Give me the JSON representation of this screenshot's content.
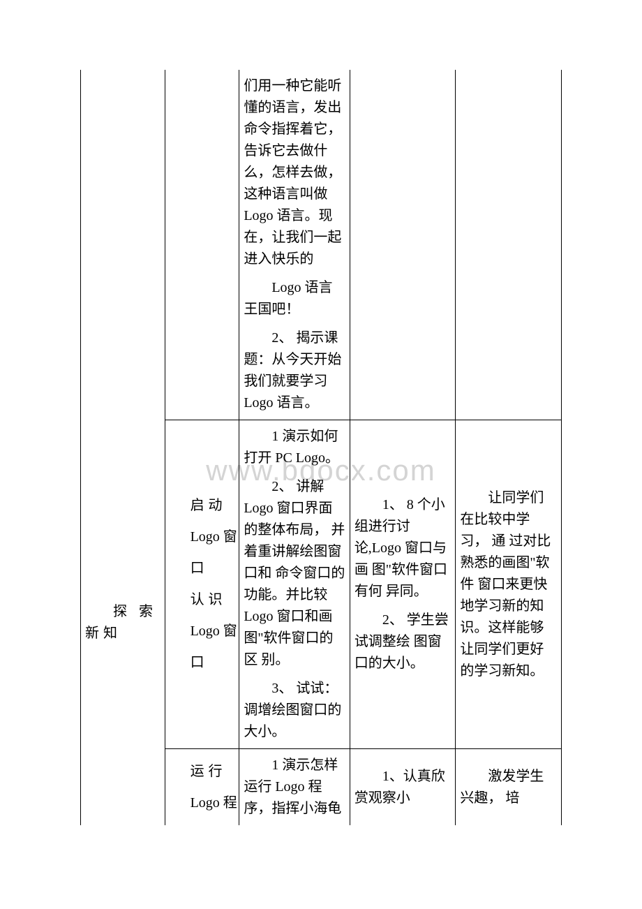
{
  "watermark": "www.bdocx.com",
  "row1": {
    "c3": {
      "p1": "们用一种它能听 懂的语言，发出命令指挥着它， 告诉它去做什么，怎样去做， 这种语言叫做 Logo 语言。现 在，让我们一起进入快乐的",
      "p2": "Logo 语言王国吧！",
      "p3": "2、 揭示课题：从今天开始我们就要学习 Logo 语言。"
    }
  },
  "row2": {
    "c1": "探 索 新知",
    "c2": {
      "l1": "启动",
      "l2": "Logo 窗",
      "l3": "口",
      "l4": "认识",
      "l5": "Logo 窗",
      "l6": "口"
    },
    "c3": {
      "p1": "1 演示如何打开 PC Logo。",
      "p2": "2、 讲解 Logo 窗口界面的整体布局， 并着重讲解绘图窗口和 命令窗口的功能。并比较 Logo 窗口和画图\"软件窗口的区 别。",
      "p3": "3、 试试：调增绘图窗口的大小。"
    },
    "c4": {
      "p1": "1、 8 个小组进行讨论,Logo 窗口与画 图\"软件窗口有何 异同。",
      "p2": "2、 学生尝试调整绘 图窗口的大小。"
    },
    "c5": "让同学们在比较中学习， 通 过对比熟悉的画图\"软件 窗口来更快地学习新的知识。这样能够让同学们更好 的学习新知。"
  },
  "row3": {
    "c2": {
      "l1": "运行",
      "l2": "Logo 程"
    },
    "c3": "1 演示怎样运行 Logo 程序，指挥小海龟",
    "c4": "1、认真欣赏观察小",
    "c5": "激发学生兴趣， 培"
  }
}
